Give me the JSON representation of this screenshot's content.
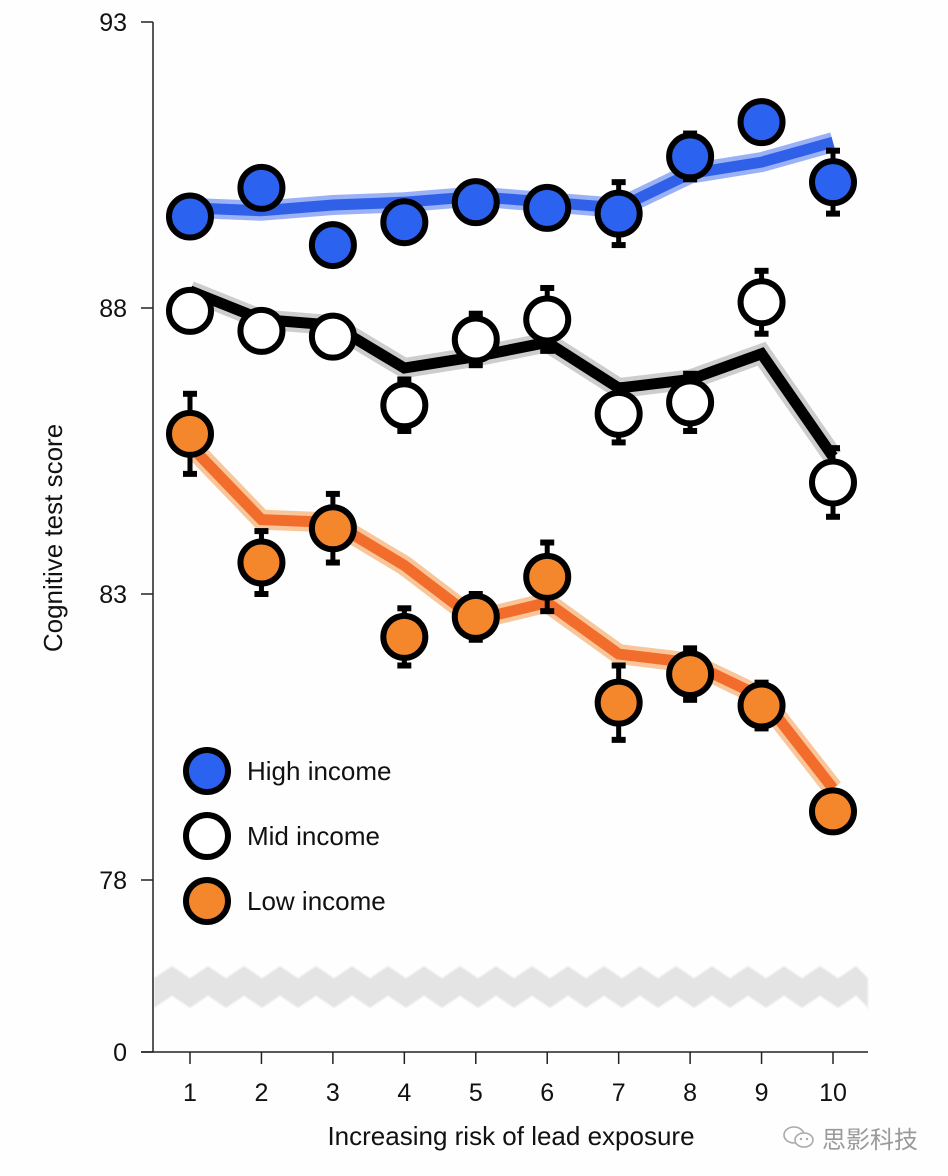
{
  "chart_data": {
    "type": "line",
    "title": "",
    "xlabel": "Increasing risk of lead exposure",
    "ylabel": "Cognitive test score",
    "x": [
      1,
      2,
      3,
      4,
      5,
      6,
      7,
      8,
      9,
      10
    ],
    "x_tick_labels": [
      "1",
      "2",
      "3",
      "4",
      "5",
      "6",
      "7",
      "8",
      "9",
      "10"
    ],
    "y_tick_labels": [
      "0",
      "78",
      "83",
      "88",
      "93"
    ],
    "ylim": [
      78,
      93
    ],
    "y_axis_break": true,
    "y_break_baseline": 0,
    "grid": false,
    "legend_position": "bottom-left",
    "series": [
      {
        "name": "High income",
        "color": "#2b63f0",
        "line_color": "#3060e8",
        "band_color": "#8fa9f5",
        "values": [
          89.6,
          90.1,
          89.1,
          89.5,
          89.85,
          89.75,
          89.65,
          90.65,
          91.25,
          90.2
        ],
        "error": [
          0.15,
          0.15,
          0.15,
          0.15,
          0.25,
          0.2,
          0.55,
          0.4,
          0.1,
          0.55
        ],
        "trend": [
          89.75,
          89.7,
          89.8,
          89.85,
          89.95,
          89.85,
          89.75,
          90.35,
          90.55,
          90.9
        ]
      },
      {
        "name": "Mid income",
        "color": "#ffffff",
        "line_color": "#000000",
        "band_color": "#c8c8c8",
        "values": [
          87.95,
          87.6,
          87.5,
          86.3,
          87.45,
          87.8,
          86.15,
          86.35,
          88.1,
          84.95
        ],
        "error": [
          0.15,
          0.15,
          0.15,
          0.45,
          0.45,
          0.55,
          0.5,
          0.5,
          0.55,
          0.6
        ],
        "trend": [
          88.3,
          87.8,
          87.7,
          86.95,
          87.15,
          87.4,
          86.6,
          86.75,
          87.2,
          85.4
        ]
      },
      {
        "name": "Low income",
        "color": "#f4862c",
        "line_color": "#f26c2c",
        "band_color": "#f8c08f",
        "values": [
          85.8,
          83.55,
          84.15,
          82.25,
          82.6,
          83.3,
          81.1,
          81.6,
          81.05,
          79.2
        ],
        "error": [
          0.7,
          0.55,
          0.6,
          0.5,
          0.4,
          0.6,
          0.65,
          0.45,
          0.4,
          0.1
        ],
        "trend": [
          85.6,
          84.3,
          84.25,
          83.5,
          82.55,
          82.85,
          81.95,
          81.8,
          81.2,
          79.6
        ]
      }
    ]
  },
  "watermark": {
    "text": "思影科技",
    "icon": "wechat-icon"
  }
}
